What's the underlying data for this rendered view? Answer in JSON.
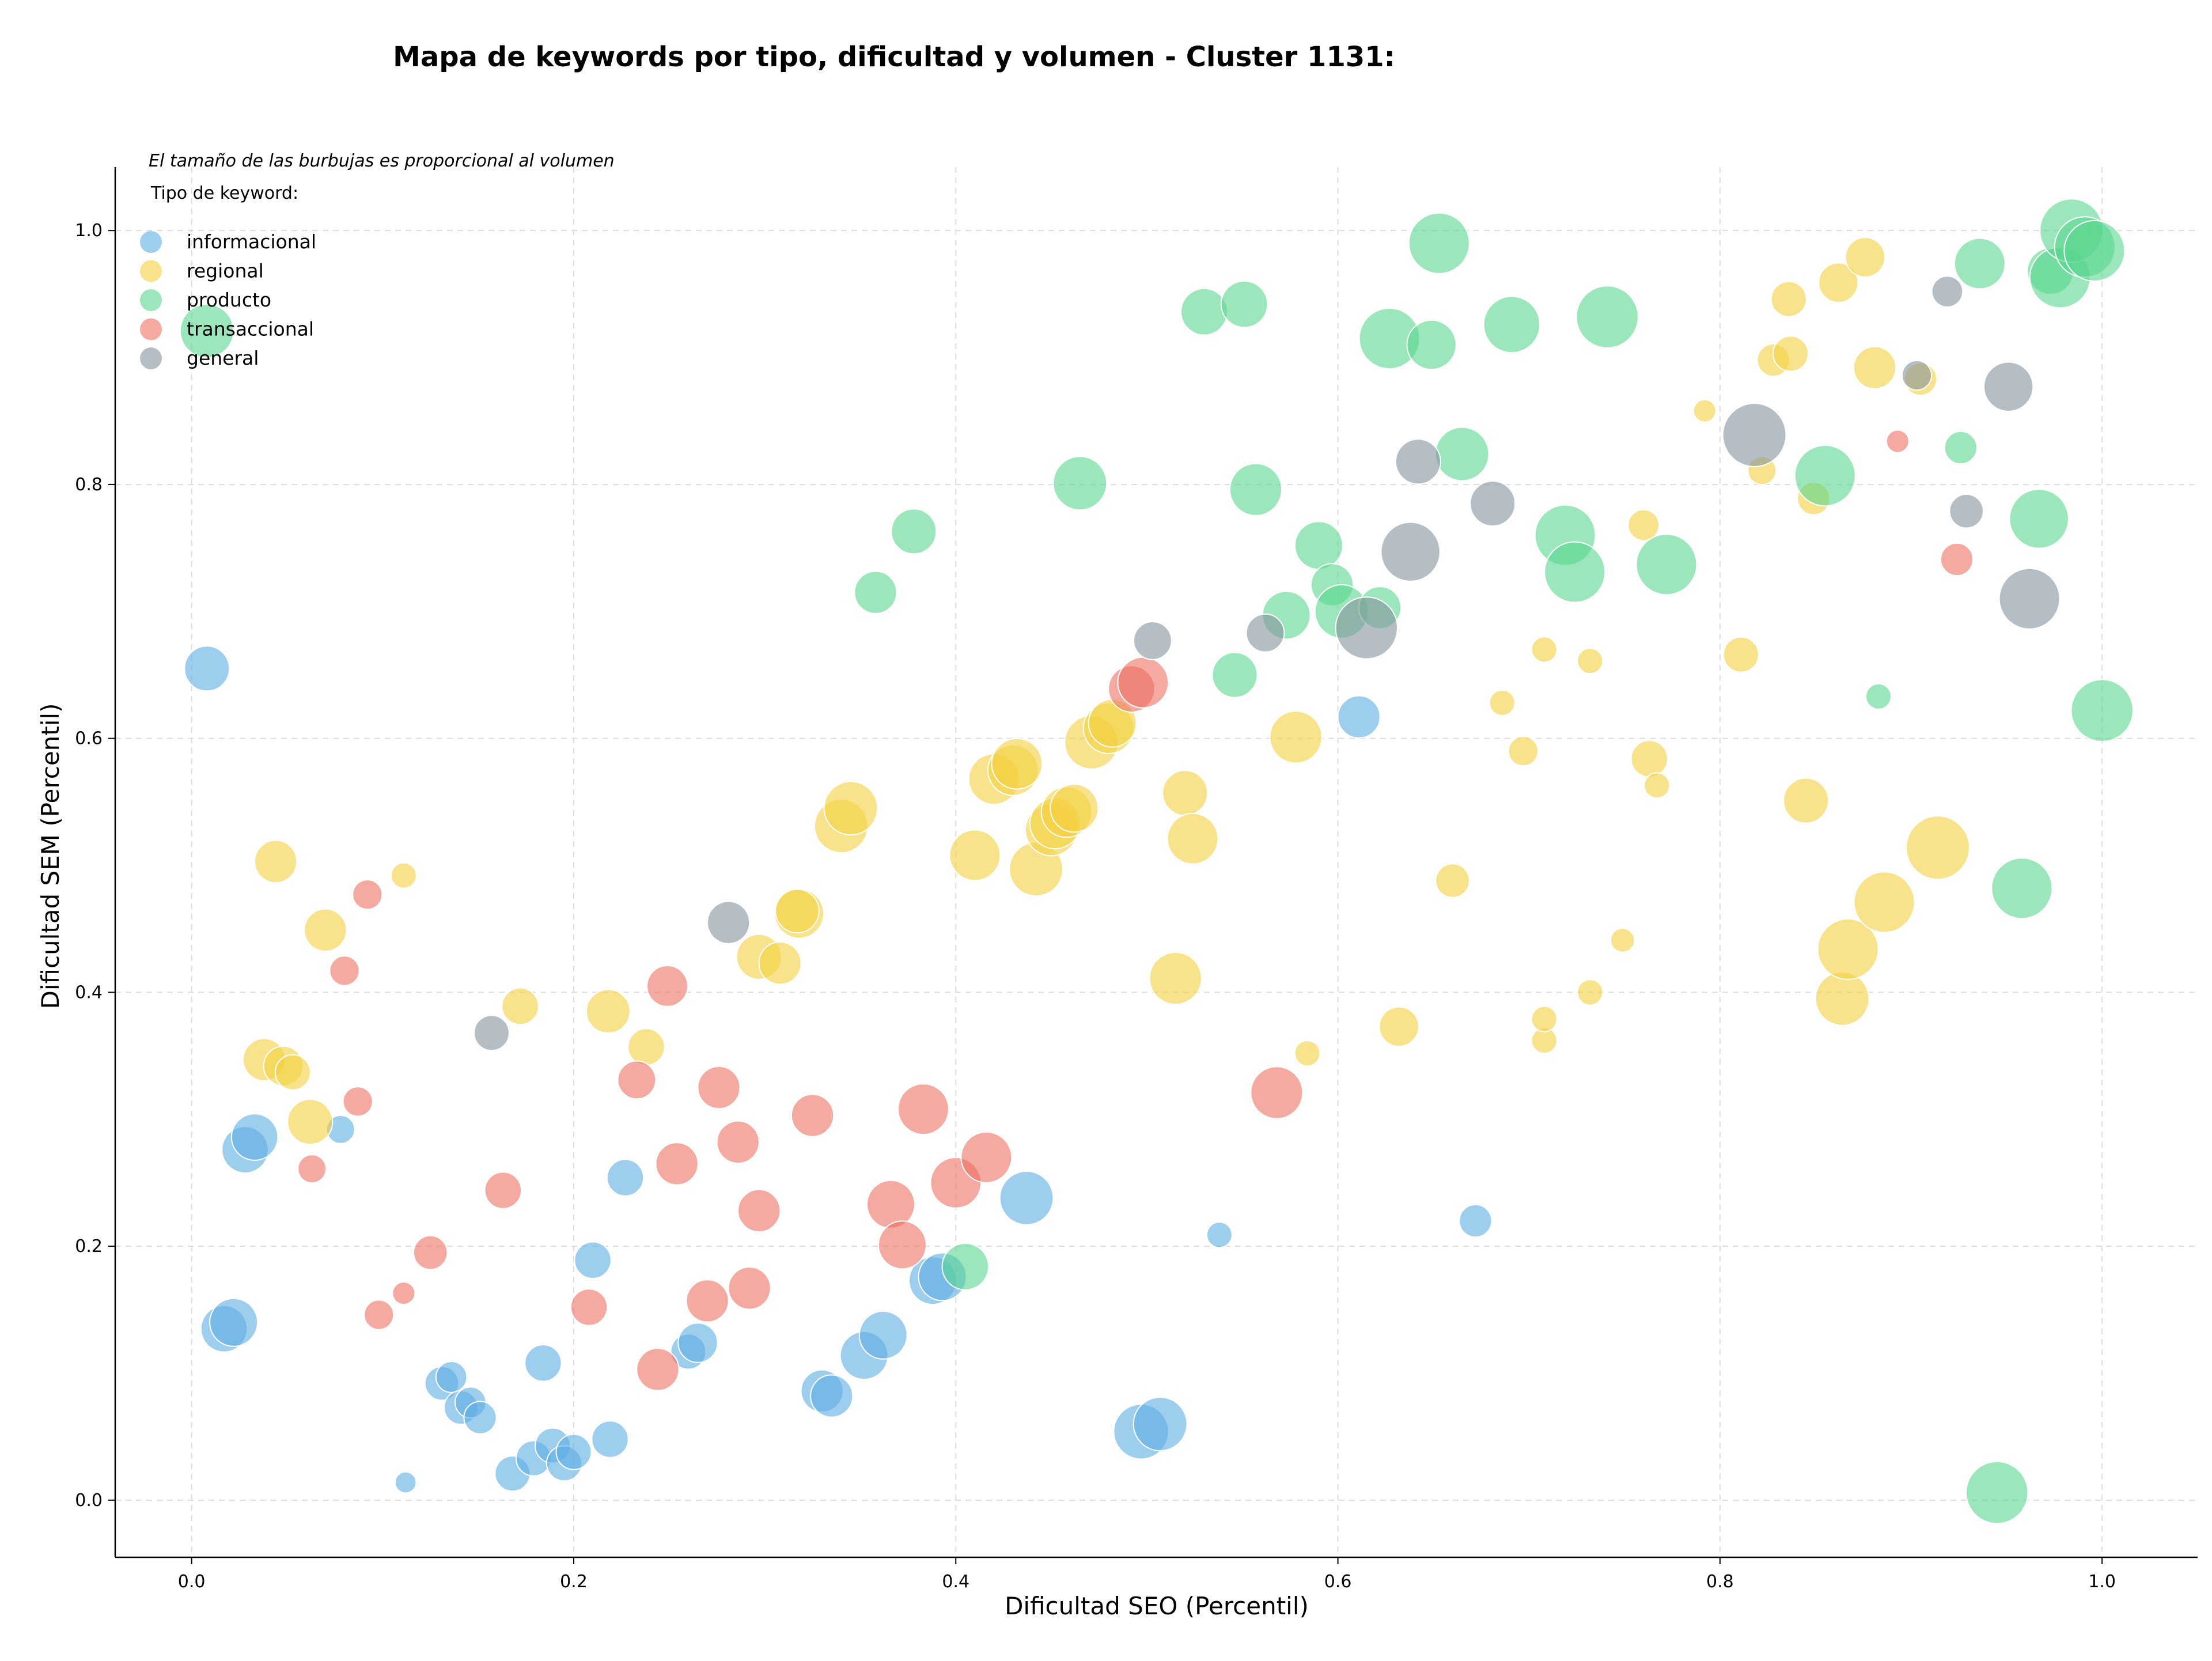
{
  "chart_data": {
    "type": "scatter",
    "title": "Mapa de keywords por tipo, dificultad y volumen - Cluster 1131:",
    "xlabel": "Dificultad SEO (Percentil)",
    "ylabel": "Dificultad SEM (Percentil)",
    "xlim": [
      -0.04,
      1.05
    ],
    "ylim": [
      -0.045,
      1.05
    ],
    "x_ticks": [
      "0.0",
      "0.2",
      "0.4",
      "0.6",
      "0.8",
      "1.0"
    ],
    "y_ticks": [
      "0.0",
      "0.2",
      "0.4",
      "0.6",
      "0.8",
      "1.0"
    ],
    "grid": true,
    "legend_position": "top-left",
    "note": "El tamaño de las burbujas es proporcional al volumen",
    "legend_title": "Tipo de keyword:",
    "series": [
      {
        "name": "informacional",
        "color": "#5DADE2",
        "points": [
          [
            0.008,
            0.655,
            3.2
          ],
          [
            0.017,
            0.135,
            3.3
          ],
          [
            0.022,
            0.14,
            3.4
          ],
          [
            0.028,
            0.276,
            3.3
          ],
          [
            0.033,
            0.286,
            3.3
          ],
          [
            0.078,
            0.292,
            2.0
          ],
          [
            0.112,
            0.014,
            1.5
          ],
          [
            0.131,
            0.092,
            2.4
          ],
          [
            0.136,
            0.097,
            2.2
          ],
          [
            0.141,
            0.073,
            2.4
          ],
          [
            0.146,
            0.077,
            2.2
          ],
          [
            0.151,
            0.065,
            2.3
          ],
          [
            0.168,
            0.021,
            2.5
          ],
          [
            0.179,
            0.033,
            2.5
          ],
          [
            0.184,
            0.108,
            2.6
          ],
          [
            0.189,
            0.043,
            2.5
          ],
          [
            0.195,
            0.029,
            2.5
          ],
          [
            0.2,
            0.038,
            2.5
          ],
          [
            0.21,
            0.189,
            2.6
          ],
          [
            0.219,
            0.048,
            2.6
          ],
          [
            0.227,
            0.254,
            2.6
          ],
          [
            0.26,
            0.117,
            2.5
          ],
          [
            0.265,
            0.124,
            2.8
          ],
          [
            0.33,
            0.086,
            3.0
          ],
          [
            0.335,
            0.082,
            3.0
          ],
          [
            0.352,
            0.114,
            3.4
          ],
          [
            0.362,
            0.13,
            3.4
          ],
          [
            0.388,
            0.173,
            3.4
          ],
          [
            0.393,
            0.176,
            3.4
          ],
          [
            0.437,
            0.238,
            3.8
          ],
          [
            0.497,
            0.054,
            3.9
          ],
          [
            0.507,
            0.06,
            3.8
          ],
          [
            0.538,
            0.209,
            1.8
          ],
          [
            0.611,
            0.617,
            3.0
          ],
          [
            0.672,
            0.22,
            2.3
          ]
        ]
      },
      {
        "name": "regional",
        "color": "#F4D03F",
        "points": [
          [
            0.044,
            0.503,
            3.0
          ],
          [
            0.038,
            0.347,
            3.0
          ],
          [
            0.048,
            0.342,
            2.8
          ],
          [
            0.053,
            0.337,
            2.5
          ],
          [
            0.062,
            0.298,
            3.2
          ],
          [
            0.07,
            0.449,
            3.0
          ],
          [
            0.111,
            0.492,
            1.8
          ],
          [
            0.172,
            0.389,
            2.6
          ],
          [
            0.218,
            0.385,
            3.1
          ],
          [
            0.238,
            0.357,
            2.6
          ],
          [
            0.297,
            0.428,
            3.2
          ],
          [
            0.308,
            0.423,
            3.0
          ],
          [
            0.318,
            0.462,
            3.5
          ],
          [
            0.317,
            0.464,
            3.1
          ],
          [
            0.34,
            0.531,
            3.8
          ],
          [
            0.345,
            0.545,
            3.8
          ],
          [
            0.41,
            0.508,
            3.6
          ],
          [
            0.42,
            0.568,
            3.6
          ],
          [
            0.43,
            0.575,
            3.6
          ],
          [
            0.432,
            0.58,
            3.6
          ],
          [
            0.442,
            0.497,
            3.8
          ],
          [
            0.45,
            0.528,
            3.7
          ],
          [
            0.452,
            0.533,
            3.6
          ],
          [
            0.458,
            0.542,
            3.6
          ],
          [
            0.462,
            0.545,
            3.4
          ],
          [
            0.471,
            0.597,
            3.8
          ],
          [
            0.48,
            0.608,
            3.6
          ],
          [
            0.482,
            0.612,
            3.4
          ],
          [
            0.515,
            0.411,
            3.7
          ],
          [
            0.52,
            0.557,
            3.2
          ],
          [
            0.524,
            0.521,
            3.6
          ],
          [
            0.578,
            0.601,
            3.7
          ],
          [
            0.584,
            0.352,
            1.8
          ],
          [
            0.632,
            0.373,
            2.8
          ],
          [
            0.66,
            0.488,
            2.4
          ],
          [
            0.686,
            0.628,
            1.8
          ],
          [
            0.697,
            0.59,
            2.1
          ],
          [
            0.708,
            0.67,
            1.8
          ],
          [
            0.708,
            0.362,
            1.8
          ],
          [
            0.708,
            0.379,
            1.8
          ],
          [
            0.732,
            0.661,
            1.8
          ],
          [
            0.732,
            0.4,
            1.8
          ],
          [
            0.749,
            0.441,
            1.7
          ],
          [
            0.76,
            0.768,
            2.2
          ],
          [
            0.763,
            0.584,
            2.6
          ],
          [
            0.767,
            0.563,
            1.8
          ],
          [
            0.792,
            0.858,
            1.6
          ],
          [
            0.811,
            0.666,
            2.5
          ],
          [
            0.822,
            0.811,
            2.0
          ],
          [
            0.828,
            0.898,
            2.3
          ],
          [
            0.836,
            0.946,
            2.5
          ],
          [
            0.837,
            0.903,
            2.5
          ],
          [
            0.845,
            0.551,
            3.2
          ],
          [
            0.849,
            0.789,
            2.3
          ],
          [
            0.862,
            0.959,
            2.8
          ],
          [
            0.864,
            0.395,
            3.8
          ],
          [
            0.867,
            0.434,
            4.3
          ],
          [
            0.876,
            0.979,
            2.8
          ],
          [
            0.881,
            0.892,
            3.0
          ],
          [
            0.886,
            0.471,
            4.3
          ],
          [
            0.905,
            0.883,
            2.3
          ],
          [
            0.914,
            0.514,
            4.5
          ]
        ]
      },
      {
        "name": "producto",
        "color": "#58D68D",
        "points": [
          [
            0.008,
            0.921,
            3.8
          ],
          [
            0.358,
            0.715,
            3.0
          ],
          [
            0.378,
            0.763,
            3.2
          ],
          [
            0.405,
            0.184,
            3.3
          ],
          [
            0.465,
            0.801,
            3.8
          ],
          [
            0.53,
            0.936,
            3.3
          ],
          [
            0.551,
            0.942,
            3.3
          ],
          [
            0.546,
            0.65,
            3.2
          ],
          [
            0.557,
            0.796,
            3.7
          ],
          [
            0.573,
            0.697,
            3.4
          ],
          [
            0.59,
            0.752,
            3.4
          ],
          [
            0.597,
            0.721,
            3.0
          ],
          [
            0.602,
            0.7,
            3.8
          ],
          [
            0.622,
            0.703,
            3.0
          ],
          [
            0.627,
            0.915,
            4.3
          ],
          [
            0.649,
            0.91,
            3.5
          ],
          [
            0.653,
            0.99,
            4.3
          ],
          [
            0.665,
            0.824,
            3.8
          ],
          [
            0.691,
            0.926,
            4.0
          ],
          [
            0.719,
            0.76,
            4.3
          ],
          [
            0.724,
            0.731,
            4.3
          ],
          [
            0.741,
            0.932,
            4.4
          ],
          [
            0.772,
            0.737,
            4.3
          ],
          [
            0.855,
            0.807,
            4.3
          ],
          [
            0.883,
            0.633,
            1.8
          ],
          [
            0.926,
            0.829,
            2.3
          ],
          [
            0.936,
            0.974,
            3.6
          ],
          [
            0.945,
            0.006,
            4.4
          ],
          [
            0.958,
            0.482,
            4.3
          ],
          [
            0.967,
            0.773,
            4.2
          ],
          [
            0.973,
            0.968,
            3.3
          ],
          [
            0.978,
            0.963,
            4.3
          ],
          [
            0.984,
            1.0,
            4.5
          ],
          [
            0.991,
            0.987,
            4.3
          ],
          [
            0.996,
            0.984,
            4.3
          ],
          [
            1.0,
            0.622,
            4.4
          ]
        ]
      },
      {
        "name": "transaccional",
        "color": "#EC7063",
        "points": [
          [
            0.063,
            0.261,
            2.0
          ],
          [
            0.08,
            0.417,
            2.1
          ],
          [
            0.087,
            0.314,
            2.1
          ],
          [
            0.092,
            0.477,
            2.1
          ],
          [
            0.098,
            0.146,
            2.1
          ],
          [
            0.111,
            0.163,
            1.6
          ],
          [
            0.125,
            0.195,
            2.4
          ],
          [
            0.163,
            0.244,
            2.6
          ],
          [
            0.208,
            0.152,
            2.6
          ],
          [
            0.233,
            0.331,
            2.7
          ],
          [
            0.244,
            0.103,
            3.0
          ],
          [
            0.249,
            0.405,
            2.9
          ],
          [
            0.254,
            0.265,
            3.0
          ],
          [
            0.27,
            0.157,
            3.0
          ],
          [
            0.276,
            0.325,
            3.0
          ],
          [
            0.286,
            0.282,
            3.0
          ],
          [
            0.292,
            0.167,
            3.0
          ],
          [
            0.297,
            0.228,
            3.0
          ],
          [
            0.325,
            0.303,
            3.0
          ],
          [
            0.366,
            0.233,
            3.4
          ],
          [
            0.372,
            0.201,
            3.4
          ],
          [
            0.383,
            0.308,
            3.6
          ],
          [
            0.4,
            0.25,
            3.6
          ],
          [
            0.416,
            0.27,
            3.6
          ],
          [
            0.492,
            0.639,
            3.3
          ],
          [
            0.498,
            0.644,
            3.6
          ],
          [
            0.568,
            0.321,
            3.7
          ],
          [
            0.893,
            0.834,
            1.6
          ],
          [
            0.924,
            0.741,
            2.3
          ]
        ]
      },
      {
        "name": "general",
        "color": "#85929E",
        "points": [
          [
            0.157,
            0.368,
            2.5
          ],
          [
            0.281,
            0.455,
            3.0
          ],
          [
            0.503,
            0.677,
            2.7
          ],
          [
            0.562,
            0.683,
            2.7
          ],
          [
            0.615,
            0.687,
            4.4
          ],
          [
            0.638,
            0.747,
            4.2
          ],
          [
            0.642,
            0.818,
            3.2
          ],
          [
            0.681,
            0.785,
            3.2
          ],
          [
            0.818,
            0.839,
            4.5
          ],
          [
            0.903,
            0.886,
            2.1
          ],
          [
            0.919,
            0.952,
            2.2
          ],
          [
            0.929,
            0.779,
            2.4
          ],
          [
            0.951,
            0.877,
            3.5
          ],
          [
            0.962,
            0.71,
            4.3
          ]
        ]
      }
    ]
  }
}
